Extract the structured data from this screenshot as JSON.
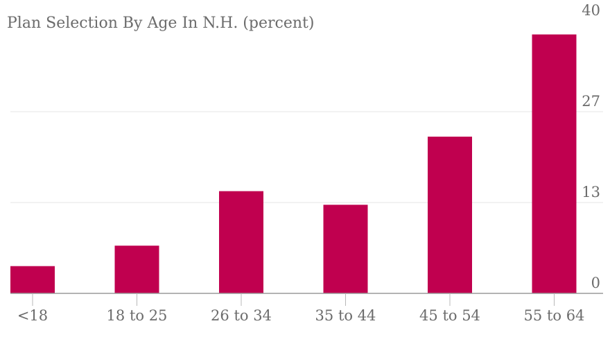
{
  "chart_data": {
    "type": "bar",
    "title": "Plan Selection By Age In N.H. (percent)",
    "categories": [
      "<18",
      "18 to 25",
      "26 to 34",
      "35 to 44",
      "45 to 54",
      "55 to 64"
    ],
    "values": [
      4,
      7,
      15,
      13,
      23,
      38
    ],
    "xlabel": "",
    "ylabel": "",
    "ylim": [
      0,
      40
    ],
    "yticks": [
      {
        "value": 0,
        "label": "0"
      },
      {
        "value": 13.33,
        "label": "13"
      },
      {
        "value": 26.67,
        "label": "27"
      },
      {
        "value": 40,
        "label": "40"
      }
    ],
    "y_axis_position": "right",
    "grid": true,
    "legend": "none",
    "bar_color": "#c0004f"
  }
}
